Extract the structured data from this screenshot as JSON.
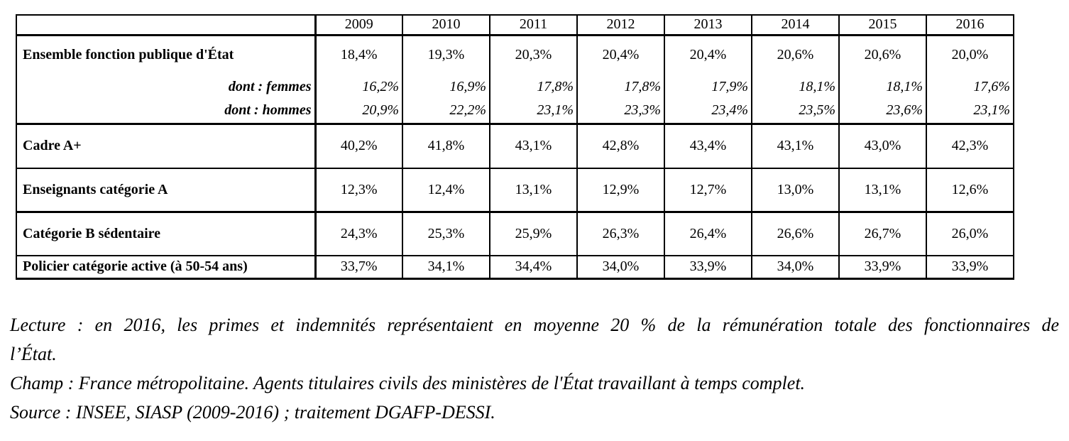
{
  "chart_data": {
    "type": "table",
    "columns": [
      "2009",
      "2010",
      "2011",
      "2012",
      "2013",
      "2014",
      "2015",
      "2016"
    ],
    "rows": [
      {
        "label": "Ensemble fonction publique d'État",
        "style": "main",
        "values": [
          "18,4%",
          "19,3%",
          "20,3%",
          "20,4%",
          "20,4%",
          "20,6%",
          "20,6%",
          "20,0%"
        ]
      },
      {
        "label": "dont : femmes",
        "style": "sub",
        "values": [
          "16,2%",
          "16,9%",
          "17,8%",
          "17,8%",
          "17,9%",
          "18,1%",
          "18,1%",
          "17,6%"
        ]
      },
      {
        "label": "dont : hommes",
        "style": "sub",
        "values": [
          "20,9%",
          "22,2%",
          "23,1%",
          "23,3%",
          "23,4%",
          "23,5%",
          "23,6%",
          "23,1%"
        ]
      },
      {
        "label": "Cadre A+",
        "style": "main",
        "values": [
          "40,2%",
          "41,8%",
          "43,1%",
          "42,8%",
          "43,4%",
          "43,1%",
          "43,0%",
          "42,3%"
        ]
      },
      {
        "label": "Enseignants catégorie A",
        "style": "main",
        "values": [
          "12,3%",
          "12,4%",
          "13,1%",
          "12,9%",
          "12,7%",
          "13,0%",
          "13,1%",
          "12,6%"
        ]
      },
      {
        "label": "Catégorie B sédentaire",
        "style": "main",
        "values": [
          "24,3%",
          "25,3%",
          "25,9%",
          "26,3%",
          "26,4%",
          "26,6%",
          "26,7%",
          "26,0%"
        ]
      },
      {
        "label": "Policier catégorie active (à 50-54 ans)",
        "style": "main",
        "values": [
          "33,7%",
          "34,1%",
          "34,4%",
          "34,0%",
          "33,9%",
          "34,0%",
          "33,9%",
          "33,9%"
        ]
      }
    ]
  },
  "notes": {
    "lecture": "Lecture : en 2016, les primes et indemnités représentaient en moyenne 20 % de la rémunération totale des fonctionnaires de l’État.",
    "champ": "Champ : France métropolitaine. Agents titulaires civils des ministères de l'État travaillant à temps complet.",
    "source": "Source : INSEE, SIASP (2009-2016) ; traitement DGAFP-DESSI."
  },
  "colors": {
    "text": "#000000",
    "background": "#ffffff",
    "border": "#000000"
  }
}
